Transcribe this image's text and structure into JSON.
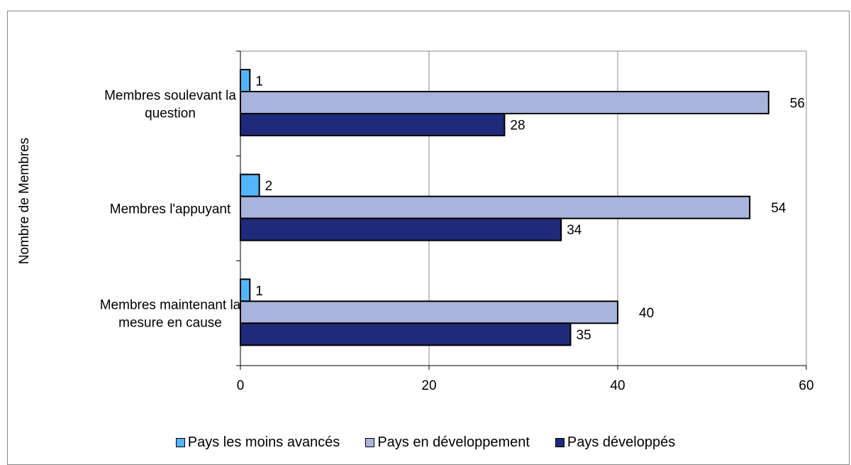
{
  "chart_data": {
    "type": "bar",
    "orientation": "horizontal",
    "categories": [
      "Membres soulevant la question",
      "Membres l'appuyant",
      "Membres maintenant la mesure en cause"
    ],
    "category_lines": [
      [
        "Membres soulevant la",
        "question"
      ],
      [
        "Membres l'appuyant"
      ],
      [
        "Membres maintenant la",
        "mesure en cause"
      ]
    ],
    "series": [
      {
        "name": "Pays les moins avancés",
        "values": [
          1,
          2,
          1
        ],
        "color": "#55b4ff"
      },
      {
        "name": "Pays en développement",
        "values": [
          56,
          54,
          40
        ],
        "color": "#a9b4dc"
      },
      {
        "name": "Pays développés",
        "values": [
          28,
          34,
          35
        ],
        "color": "#1f2a7a"
      }
    ],
    "xlim": [
      0,
      60
    ],
    "xticks": [
      0,
      20,
      40,
      60
    ],
    "ylabel": "Nombre de Membres",
    "xlabel": "",
    "title": "",
    "grid": "vertical",
    "legend_position": "bottom"
  }
}
